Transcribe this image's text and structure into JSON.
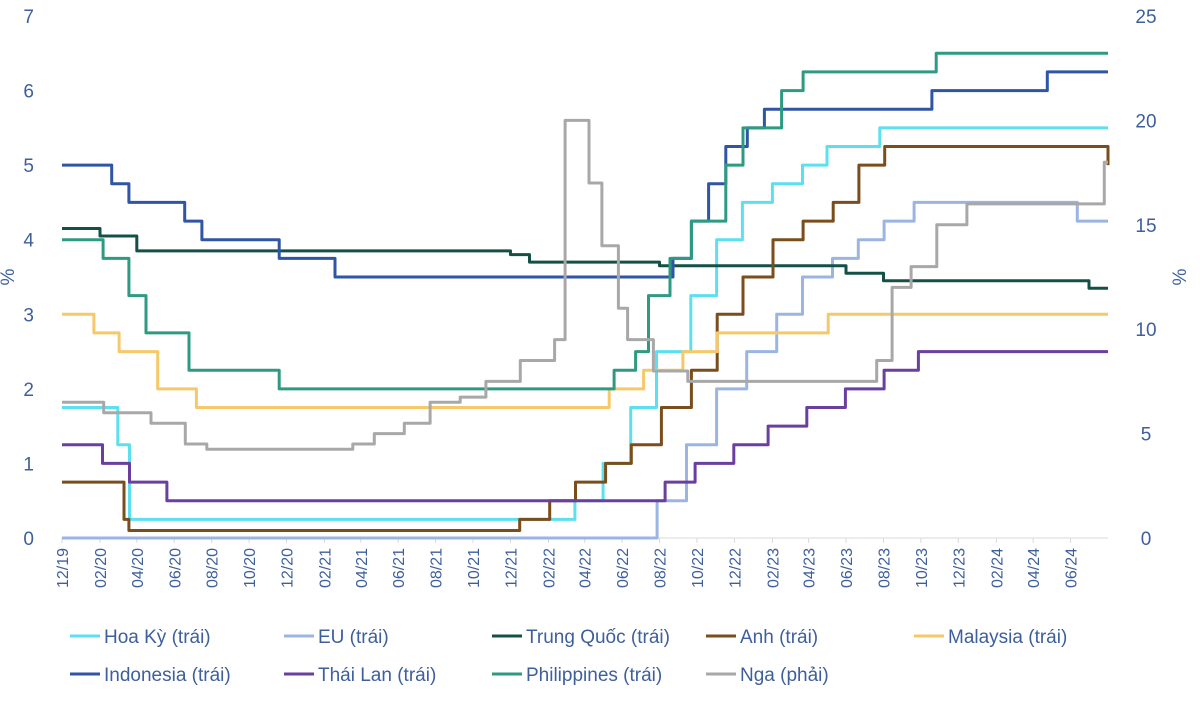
{
  "chart_data": {
    "type": "line",
    "step": true,
    "ylabel_left": "%",
    "ylabel_right": "%",
    "ylim_left": [
      0,
      7
    ],
    "ylim_right": [
      0,
      25
    ],
    "yticks_left": [
      "0",
      "1",
      "2",
      "3",
      "4",
      "5",
      "6",
      "7"
    ],
    "yticks_right": [
      "0",
      "5",
      "10",
      "15",
      "20",
      "25"
    ],
    "x_tick_labels": [
      "12/19",
      "02/20",
      "04/20",
      "06/20",
      "08/20",
      "10/20",
      "12/20",
      "02/21",
      "04/21",
      "06/21",
      "08/21",
      "10/21",
      "12/21",
      "02/22",
      "04/22",
      "06/22",
      "08/22",
      "10/22",
      "12/22",
      "02/23",
      "04/23",
      "06/23",
      "08/23",
      "10/23",
      "12/23",
      "02/24",
      "04/24",
      "06/24"
    ],
    "x_start": "2019-12",
    "x_end": "2024-08",
    "grid": false,
    "legend_position": "bottom",
    "series": [
      {
        "name": "Hoa Kỳ (trái)",
        "axis": "left",
        "color": "#5ce0f0",
        "width": 3,
        "points": [
          [
            "2019-12",
            1.75
          ],
          [
            "2020-03",
            1.25
          ],
          [
            "2020-03-20",
            0.25
          ],
          [
            "2022-03-16",
            0.5
          ],
          [
            "2022-05",
            1.0
          ],
          [
            "2022-06-15",
            1.75
          ],
          [
            "2022-07-27",
            2.5
          ],
          [
            "2022-09-21",
            3.25
          ],
          [
            "2022-11-02",
            4.0
          ],
          [
            "2022-12-14",
            4.5
          ],
          [
            "2023-02",
            4.75
          ],
          [
            "2023-03-22",
            5.0
          ],
          [
            "2023-05",
            5.25
          ],
          [
            "2023-07-26",
            5.5
          ],
          [
            "2024-08",
            5.5
          ]
        ]
      },
      {
        "name": "EU (trái)",
        "axis": "left",
        "color": "#9bb5e2",
        "width": 3,
        "points": [
          [
            "2019-12",
            0
          ],
          [
            "2022-07-27",
            0
          ],
          [
            "2022-07-28",
            0.5
          ],
          [
            "2022-09-14",
            1.25
          ],
          [
            "2022-11-02",
            2.0
          ],
          [
            "2022-12-21",
            2.5
          ],
          [
            "2023-02-08",
            3.0
          ],
          [
            "2023-03-22",
            3.5
          ],
          [
            "2023-05-10",
            3.75
          ],
          [
            "2023-06-21",
            4.0
          ],
          [
            "2023-08-02",
            4.25
          ],
          [
            "2023-09-20",
            4.5
          ],
          [
            "2024-06-12",
            4.25
          ],
          [
            "2024-08",
            4.25
          ]
        ]
      },
      {
        "name": "Trung Quốc (trái)",
        "axis": "left",
        "color": "#145048",
        "width": 3,
        "points": [
          [
            "2019-12",
            4.15
          ],
          [
            "2020-02",
            4.05
          ],
          [
            "2020-04",
            3.85
          ],
          [
            "2021-12",
            3.8
          ],
          [
            "2022-01",
            3.7
          ],
          [
            "2022-08",
            3.65
          ],
          [
            "2023-06",
            3.55
          ],
          [
            "2023-08",
            3.45
          ],
          [
            "2024-07",
            3.35
          ],
          [
            "2024-08",
            3.35
          ]
        ]
      },
      {
        "name": "Anh (trái)",
        "axis": "left",
        "color": "#7a4e1c",
        "width": 3,
        "points": [
          [
            "2019-12",
            0.75
          ],
          [
            "2020-03-11",
            0.25
          ],
          [
            "2020-03-19",
            0.1
          ],
          [
            "2021-12-16",
            0.25
          ],
          [
            "2022-02-03",
            0.5
          ],
          [
            "2022-03-17",
            0.75
          ],
          [
            "2022-05-05",
            1.0
          ],
          [
            "2022-06-16",
            1.25
          ],
          [
            "2022-08-04",
            1.75
          ],
          [
            "2022-09-22",
            2.25
          ],
          [
            "2022-11-03",
            3.0
          ],
          [
            "2022-12-15",
            3.5
          ],
          [
            "2023-02-02",
            4.0
          ],
          [
            "2023-03-23",
            4.25
          ],
          [
            "2023-05-11",
            4.5
          ],
          [
            "2023-06-22",
            5.0
          ],
          [
            "2023-08-03",
            5.25
          ],
          [
            "2024-08-01",
            5.0
          ],
          [
            "2024-08",
            5.0
          ]
        ]
      },
      {
        "name": "Malaysia (trái)",
        "axis": "left",
        "color": "#f5c96a",
        "width": 3,
        "points": [
          [
            "2019-12",
            3.0
          ],
          [
            "2020-01-22",
            2.75
          ],
          [
            "2020-03-03",
            2.5
          ],
          [
            "2020-05-05",
            2.0
          ],
          [
            "2020-07-07",
            1.75
          ],
          [
            "2022-05-11",
            2.0
          ],
          [
            "2022-07-06",
            2.25
          ],
          [
            "2022-09-08",
            2.5
          ],
          [
            "2022-11-03",
            2.75
          ],
          [
            "2023-05-03",
            3.0
          ],
          [
            "2024-08",
            3.0
          ]
        ]
      },
      {
        "name": "Indonesia (trái)",
        "axis": "left",
        "color": "#2f55a4",
        "width": 3,
        "points": [
          [
            "2019-12",
            5.0
          ],
          [
            "2020-02-20",
            4.75
          ],
          [
            "2020-03-19",
            4.5
          ],
          [
            "2020-06-18",
            4.25
          ],
          [
            "2020-07-16",
            4.0
          ],
          [
            "2020-11-19",
            3.75
          ],
          [
            "2021-02-18",
            3.5
          ],
          [
            "2022-08-23",
            3.75
          ],
          [
            "2022-09-22",
            4.25
          ],
          [
            "2022-10-20",
            4.75
          ],
          [
            "2022-11-17",
            5.25
          ],
          [
            "2022-12-22",
            5.5
          ],
          [
            "2023-01-19",
            5.75
          ],
          [
            "2023-10-19",
            6.0
          ],
          [
            "2024-04-24",
            6.25
          ],
          [
            "2024-08",
            6.25
          ]
        ]
      },
      {
        "name": "Thái Lan (trái)",
        "axis": "left",
        "color": "#6b3fa0",
        "width": 3,
        "points": [
          [
            "2019-12",
            1.25
          ],
          [
            "2020-02-05",
            1.0
          ],
          [
            "2020-03-20",
            0.75
          ],
          [
            "2020-05-20",
            0.5
          ],
          [
            "2022-08-10",
            0.75
          ],
          [
            "2022-09-28",
            1.0
          ],
          [
            "2022-11-30",
            1.25
          ],
          [
            "2023-01-25",
            1.5
          ],
          [
            "2023-03-29",
            1.75
          ],
          [
            "2023-05-31",
            2.0
          ],
          [
            "2023-08-02",
            2.25
          ],
          [
            "2023-09-27",
            2.5
          ],
          [
            "2024-08",
            2.5
          ]
        ]
      },
      {
        "name": "Philippines (trái)",
        "axis": "left",
        "color": "#2f9a82",
        "width": 3,
        "points": [
          [
            "2019-12",
            4.0
          ],
          [
            "2020-02-06",
            3.75
          ],
          [
            "2020-03-19",
            3.25
          ],
          [
            "2020-04-16",
            2.75
          ],
          [
            "2020-06-25",
            2.25
          ],
          [
            "2020-11-19",
            2.0
          ],
          [
            "2022-05-19",
            2.25
          ],
          [
            "2022-06-23",
            2.5
          ],
          [
            "2022-07-14",
            3.25
          ],
          [
            "2022-08-18",
            3.75
          ],
          [
            "2022-09-22",
            4.25
          ],
          [
            "2022-11-17",
            5.0
          ],
          [
            "2022-12-15",
            5.5
          ],
          [
            "2023-02-16",
            6.0
          ],
          [
            "2023-03-23",
            6.25
          ],
          [
            "2023-10-26",
            6.5
          ],
          [
            "2024-08",
            6.5
          ]
        ]
      },
      {
        "name": "Nga (phải)",
        "axis": "right",
        "color": "#a8a8a8",
        "width": 3,
        "points": [
          [
            "2019-12",
            6.5
          ],
          [
            "2020-02-07",
            6.0
          ],
          [
            "2020-04-24",
            5.5
          ],
          [
            "2020-06-19",
            4.5
          ],
          [
            "2020-07-24",
            4.25
          ],
          [
            "2021-03-19",
            4.5
          ],
          [
            "2021-04-23",
            5.0
          ],
          [
            "2021-06-11",
            5.5
          ],
          [
            "2021-07-23",
            6.5
          ],
          [
            "2021-09-10",
            6.75
          ],
          [
            "2021-10-22",
            7.5
          ],
          [
            "2021-12-17",
            8.5
          ],
          [
            "2022-02-11",
            9.5
          ],
          [
            "2022-02-28",
            20.0
          ],
          [
            "2022-04-08",
            17.0
          ],
          [
            "2022-04-29",
            14.0
          ],
          [
            "2022-05-26",
            11.0
          ],
          [
            "2022-06-10",
            9.5
          ],
          [
            "2022-07-22",
            8.0
          ],
          [
            "2022-09-16",
            7.5
          ],
          [
            "2023-07-21",
            8.5
          ],
          [
            "2023-08-15",
            12.0
          ],
          [
            "2023-09-15",
            13.0
          ],
          [
            "2023-10-27",
            15.0
          ],
          [
            "2023-12-15",
            16.0
          ],
          [
            "2024-07-26",
            18.0
          ],
          [
            "2024-08",
            18.0
          ]
        ]
      }
    ]
  }
}
